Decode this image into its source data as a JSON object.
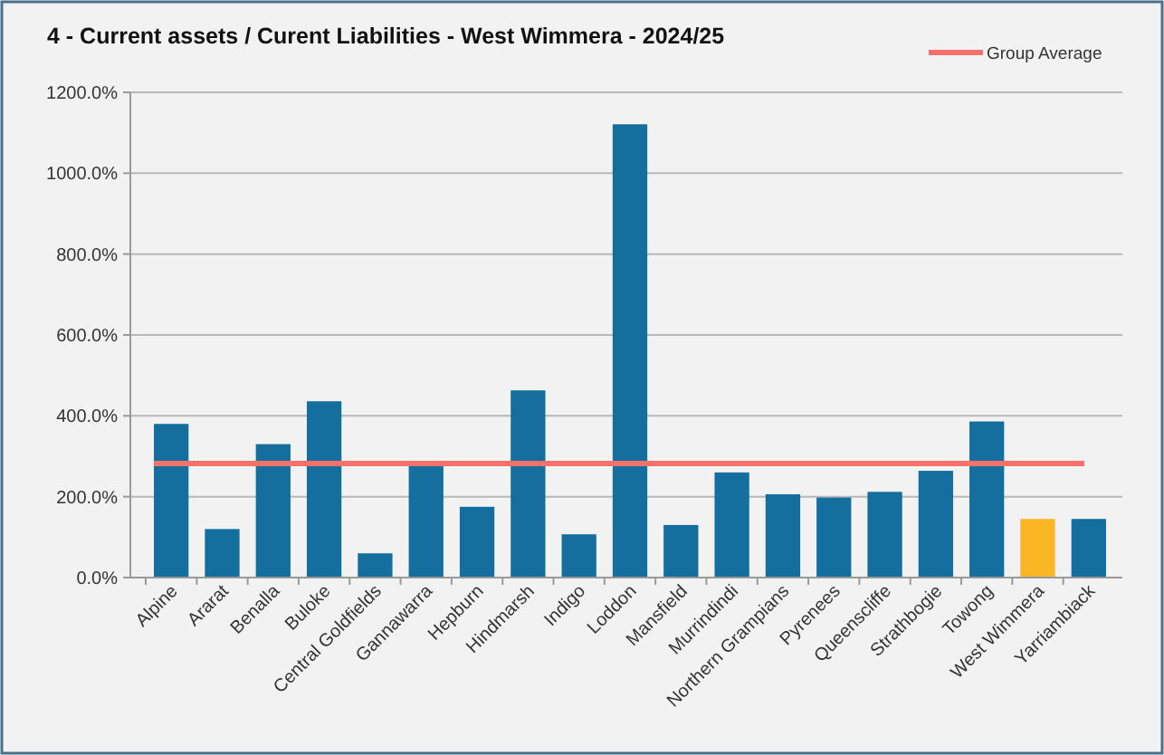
{
  "chart_data": {
    "type": "bar",
    "title": "4 - Current assets / Curent Liabilities - West Wimmera - 2024/25",
    "categories": [
      "Alpine",
      "Ararat",
      "Benalla",
      "Buloke",
      "Central Goldfields",
      "Gannawarra",
      "Hepburn",
      "Hindmarsh",
      "Indigo",
      "Loddon",
      "Mansfield",
      "Murrindindi",
      "Northern Grampians",
      "Pyrenees",
      "Queenscliffe",
      "Strathbogie",
      "Towong",
      "West Wimmera",
      "Yarriambiack"
    ],
    "values": [
      380,
      120,
      330,
      436,
      60,
      280,
      175,
      463,
      107,
      1121,
      130,
      260,
      206,
      198,
      212,
      264,
      386,
      145,
      145
    ],
    "colors": [
      "#156f9e",
      "#156f9e",
      "#156f9e",
      "#156f9e",
      "#156f9e",
      "#156f9e",
      "#156f9e",
      "#156f9e",
      "#156f9e",
      "#156f9e",
      "#156f9e",
      "#156f9e",
      "#156f9e",
      "#156f9e",
      "#156f9e",
      "#156f9e",
      "#156f9e",
      "#fbb626",
      "#156f9e"
    ],
    "ylim": [
      0,
      1200
    ],
    "yticks": [
      {
        "value": 0,
        "label": "0.0%"
      },
      {
        "value": 200,
        "label": "200.0%"
      },
      {
        "value": 400,
        "label": "400.0%"
      },
      {
        "value": 600,
        "label": "600.0%"
      },
      {
        "value": 800,
        "label": "800.0%"
      },
      {
        "value": 1000,
        "label": "1000.0%"
      },
      {
        "value": 1200,
        "label": "1200.0%"
      }
    ],
    "ref_lines": [
      {
        "axis": "y",
        "value": 282,
        "label": "Group Average",
        "color": "#f4716c"
      }
    ],
    "grid": "y",
    "legend": "top right"
  }
}
